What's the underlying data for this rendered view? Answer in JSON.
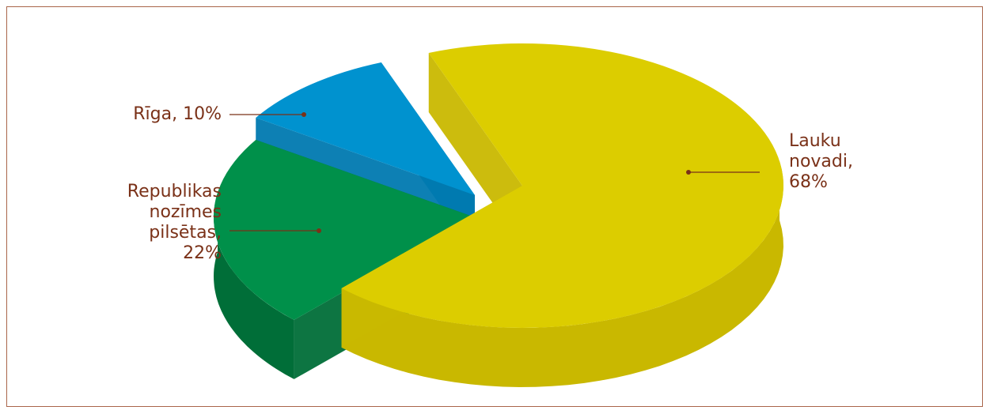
{
  "chart_data": {
    "type": "pie",
    "style": "3d-exploded",
    "title": "",
    "slices": [
      {
        "name": "Lauku novadi",
        "value": 68,
        "color": "#dccd00",
        "side_color": "#c9b800",
        "label_lines": [
          "Lauku",
          "novadi,",
          "68%"
        ]
      },
      {
        "name": "Republikas nozīmes pilsētas",
        "value": 22,
        "color": "#00904a",
        "side_color": "#006e38",
        "label_lines": [
          "Republikas",
          "nozīmes",
          "pilsētas,",
          "22%"
        ]
      },
      {
        "name": "Rīga",
        "value": 10,
        "color": "#0092cf",
        "side_color": "#0079b0",
        "label_lines": [
          "Rīga, 10%"
        ]
      }
    ],
    "label_color": "#7a3118",
    "leader_color": "#7a3118",
    "frame_color": "#a9654a"
  }
}
